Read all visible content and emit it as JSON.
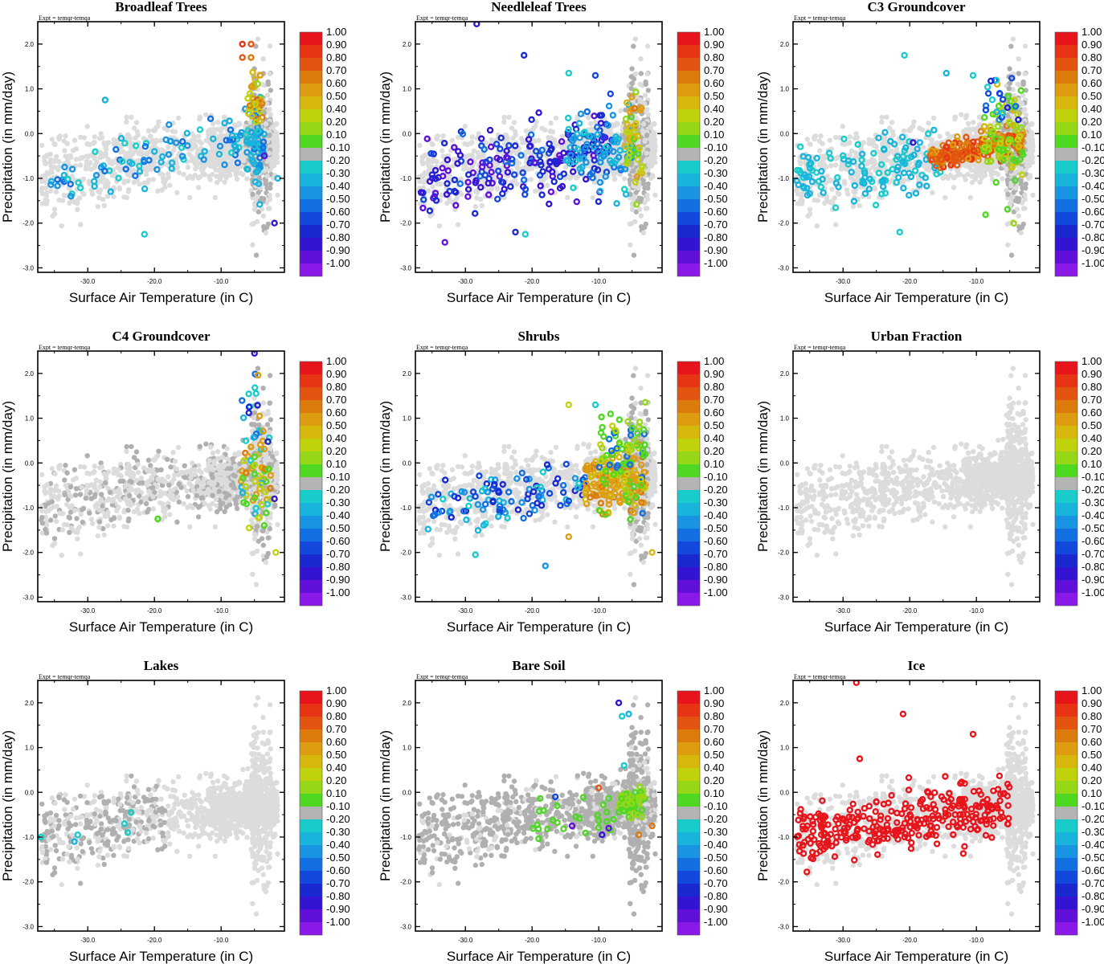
{
  "figure": {
    "expt_label": "Expt = temqr-temqa",
    "colorbar_labels": [
      "1.00",
      "0.90",
      "0.80",
      "0.70",
      "0.60",
      "0.50",
      "0.40",
      "0.20",
      "0.10",
      "-0.10",
      "-0.20",
      "-0.30",
      "-0.40",
      "-0.50",
      "-0.60",
      "-0.70",
      "-0.80",
      "-0.90",
      "-1.00"
    ],
    "colorbar_colors": [
      "#e8141c",
      "#e63414",
      "#e25410",
      "#dc7a0c",
      "#de9c10",
      "#d6b80c",
      "#c0d20c",
      "#96d818",
      "#4ed822",
      "#b4b4b4",
      "#18cccc",
      "#18b4dc",
      "#1894e2",
      "#1270e2",
      "#1248dc",
      "#1a28d0",
      "#3414d2",
      "#6010d8",
      "#8a18e6"
    ],
    "background_colors": [
      "#dcdcdc",
      "#b0b0b0"
    ]
  },
  "chart_data": [
    {
      "type": "scatter",
      "title": "Broadleaf Trees",
      "xlabel": "Surface Air Temperature (in C)",
      "ylabel": "Precipitation (in mm/day)",
      "xlim": [
        -37.5,
        -0.5
      ],
      "ylim": [
        -3.1,
        2.5
      ],
      "xticks": [
        "-30.0",
        "-20.0",
        "-10.0"
      ],
      "yticks": [
        "2.0",
        "1.0",
        "0.0",
        "-1.0",
        "-2.0",
        "-3.0"
      ],
      "pattern": "broadleaf",
      "points_note": "~150 colored points mostly -0.2..-0.5 (cyan/blue) spread over -36..-3 C, plus warm (0.3..0.9) points near -6..-4 C, 1.0..2.0 mm/day"
    },
    {
      "type": "scatter",
      "title": "Needleleaf Trees",
      "xlabel": "Surface Air Temperature (in C)",
      "ylabel": "Precipitation (in mm/day)",
      "xlim": [
        -37.5,
        -0.5
      ],
      "ylim": [
        -3.1,
        2.5
      ],
      "xticks": [
        "-30.0",
        "-20.0",
        "-10.0"
      ],
      "yticks": [
        "2.0",
        "1.0",
        "0.0",
        "-1.0",
        "-2.0",
        "-3.0"
      ],
      "pattern": "needleleaf",
      "points_note": "~350 colored points, -0.3..-0.9 (blue/purple) over -37..-10 C, trending to cyan/yellow near -5 C"
    },
    {
      "type": "scatter",
      "title": "C3 Groundcover",
      "xlabel": "Surface Air Temperature (in C)",
      "ylabel": "Precipitation (in mm/day)",
      "xlim": [
        -37.5,
        -0.5
      ],
      "ylim": [
        -3.1,
        2.5
      ],
      "xticks": [
        "-30.0",
        "-20.0",
        "-10.0"
      ],
      "yticks": [
        "2.0",
        "1.0",
        "0.0",
        "-1.0",
        "-2.0",
        "-3.0"
      ],
      "pattern": "c3",
      "points_note": "cyan (-0.2) cold points, dense orange/red (0.6..0.9) cluster at -17..-3 C around -0.5 mm/day"
    },
    {
      "type": "scatter",
      "title": "C4 Groundcover",
      "xlabel": "Surface Air Temperature (in C)",
      "ylabel": "Precipitation (in mm/day)",
      "xlim": [
        -37.5,
        -0.5
      ],
      "ylim": [
        -3.1,
        2.5
      ],
      "xticks": [
        "-30.0",
        "-20.0",
        "-10.0"
      ],
      "yticks": [
        "2.0",
        "1.0",
        "0.0",
        "-1.0",
        "-2.0",
        "-3.0"
      ],
      "pattern": "c4",
      "points_note": "mostly grey; colored (mixed) points only near -7..-2 C"
    },
    {
      "type": "scatter",
      "title": "Shrubs",
      "xlabel": "Surface Air Temperature (in C)",
      "ylabel": "Precipitation (in mm/day)",
      "xlim": [
        -37.5,
        -0.5
      ],
      "ylim": [
        -3.1,
        2.5
      ],
      "xticks": [
        "-30.0",
        "-20.0",
        "-10.0"
      ],
      "yticks": [
        "2.0",
        "1.0",
        "0.0",
        "-1.0",
        "-2.0",
        "-3.0"
      ],
      "pattern": "shrubs",
      "points_note": "cyan/blue cold, orange/yellow/green warm cluster -12..-3 C"
    },
    {
      "type": "scatter",
      "title": "Urban Fraction",
      "xlabel": "Surface Air Temperature (in C)",
      "ylabel": "Precipitation (in mm/day)",
      "xlim": [
        -37.5,
        -0.5
      ],
      "ylim": [
        -3.1,
        2.5
      ],
      "xticks": [
        "-30.0",
        "-20.0",
        "-10.0"
      ],
      "yticks": [
        "2.0",
        "1.0",
        "0.0",
        "-1.0",
        "-2.0",
        "-3.0"
      ],
      "pattern": "urban",
      "points_note": "all points light grey (no significant correlation)"
    },
    {
      "type": "scatter",
      "title": "Lakes",
      "xlabel": "Surface Air Temperature (in C)",
      "ylabel": "Precipitation (in mm/day)",
      "xlim": [
        -37.5,
        -0.5
      ],
      "ylim": [
        -3.1,
        2.5
      ],
      "xticks": [
        "-30.0",
        "-20.0",
        "-10.0"
      ],
      "yticks": [
        "2.0",
        "1.0",
        "0.0",
        "-1.0",
        "-2.0",
        "-3.0"
      ],
      "pattern": "lakes",
      "points_note": "dark grey cold points, a few cyan near -37..-24 C"
    },
    {
      "type": "scatter",
      "title": "Bare Soil",
      "xlabel": "Surface Air Temperature (in C)",
      "ylabel": "Precipitation (in mm/day)",
      "xlim": [
        -37.5,
        -0.5
      ],
      "ylim": [
        -3.1,
        2.5
      ],
      "xticks": [
        "-30.0",
        "-20.0",
        "-10.0"
      ],
      "yticks": [
        "2.0",
        "1.0",
        "0.0",
        "-1.0",
        "-2.0",
        "-3.0"
      ],
      "pattern": "baresoil",
      "points_note": "dark grey majority; green/yellow cluster -7..-3 C near -0.3 mm/day; few purple/blue/red"
    },
    {
      "type": "scatter",
      "title": "Ice",
      "xlabel": "Surface Air Temperature (in C)",
      "ylabel": "Precipitation (in mm/day)",
      "xlim": [
        -37.5,
        -0.5
      ],
      "ylim": [
        -3.1,
        2.5
      ],
      "xticks": [
        "-30.0",
        "-20.0",
        "-10.0"
      ],
      "yticks": [
        "2.0",
        "1.0",
        "0.0",
        "-1.0",
        "-2.0",
        "-3.0"
      ],
      "pattern": "ice",
      "points_note": "~300 red (1.0) points over -37..-5 C"
    }
  ]
}
